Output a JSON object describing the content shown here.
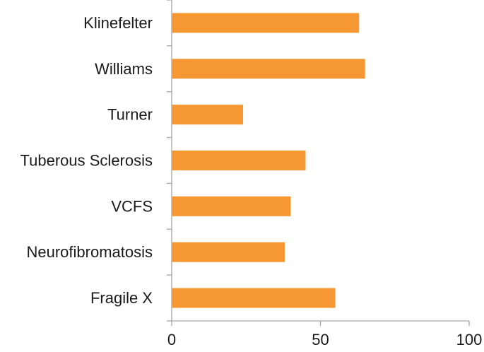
{
  "chart_data": {
    "type": "bar",
    "orientation": "horizontal",
    "categories": [
      "Klinefelter",
      "Williams",
      "Turner",
      "Tuberous Sclerosis",
      "VCFS",
      "Neurofibromatosis",
      "Fragile X"
    ],
    "values": [
      63,
      65,
      24,
      45,
      40,
      38,
      55
    ],
    "xlim": [
      0,
      100
    ],
    "xticks": [
      0,
      50,
      100
    ],
    "xtick_labels": [
      "0",
      "50",
      "100"
    ],
    "title": "",
    "xlabel": "",
    "ylabel": "",
    "grid": false,
    "legend": "none",
    "bar_color": "#f59833",
    "axis_color": "#a6a6a6"
  }
}
